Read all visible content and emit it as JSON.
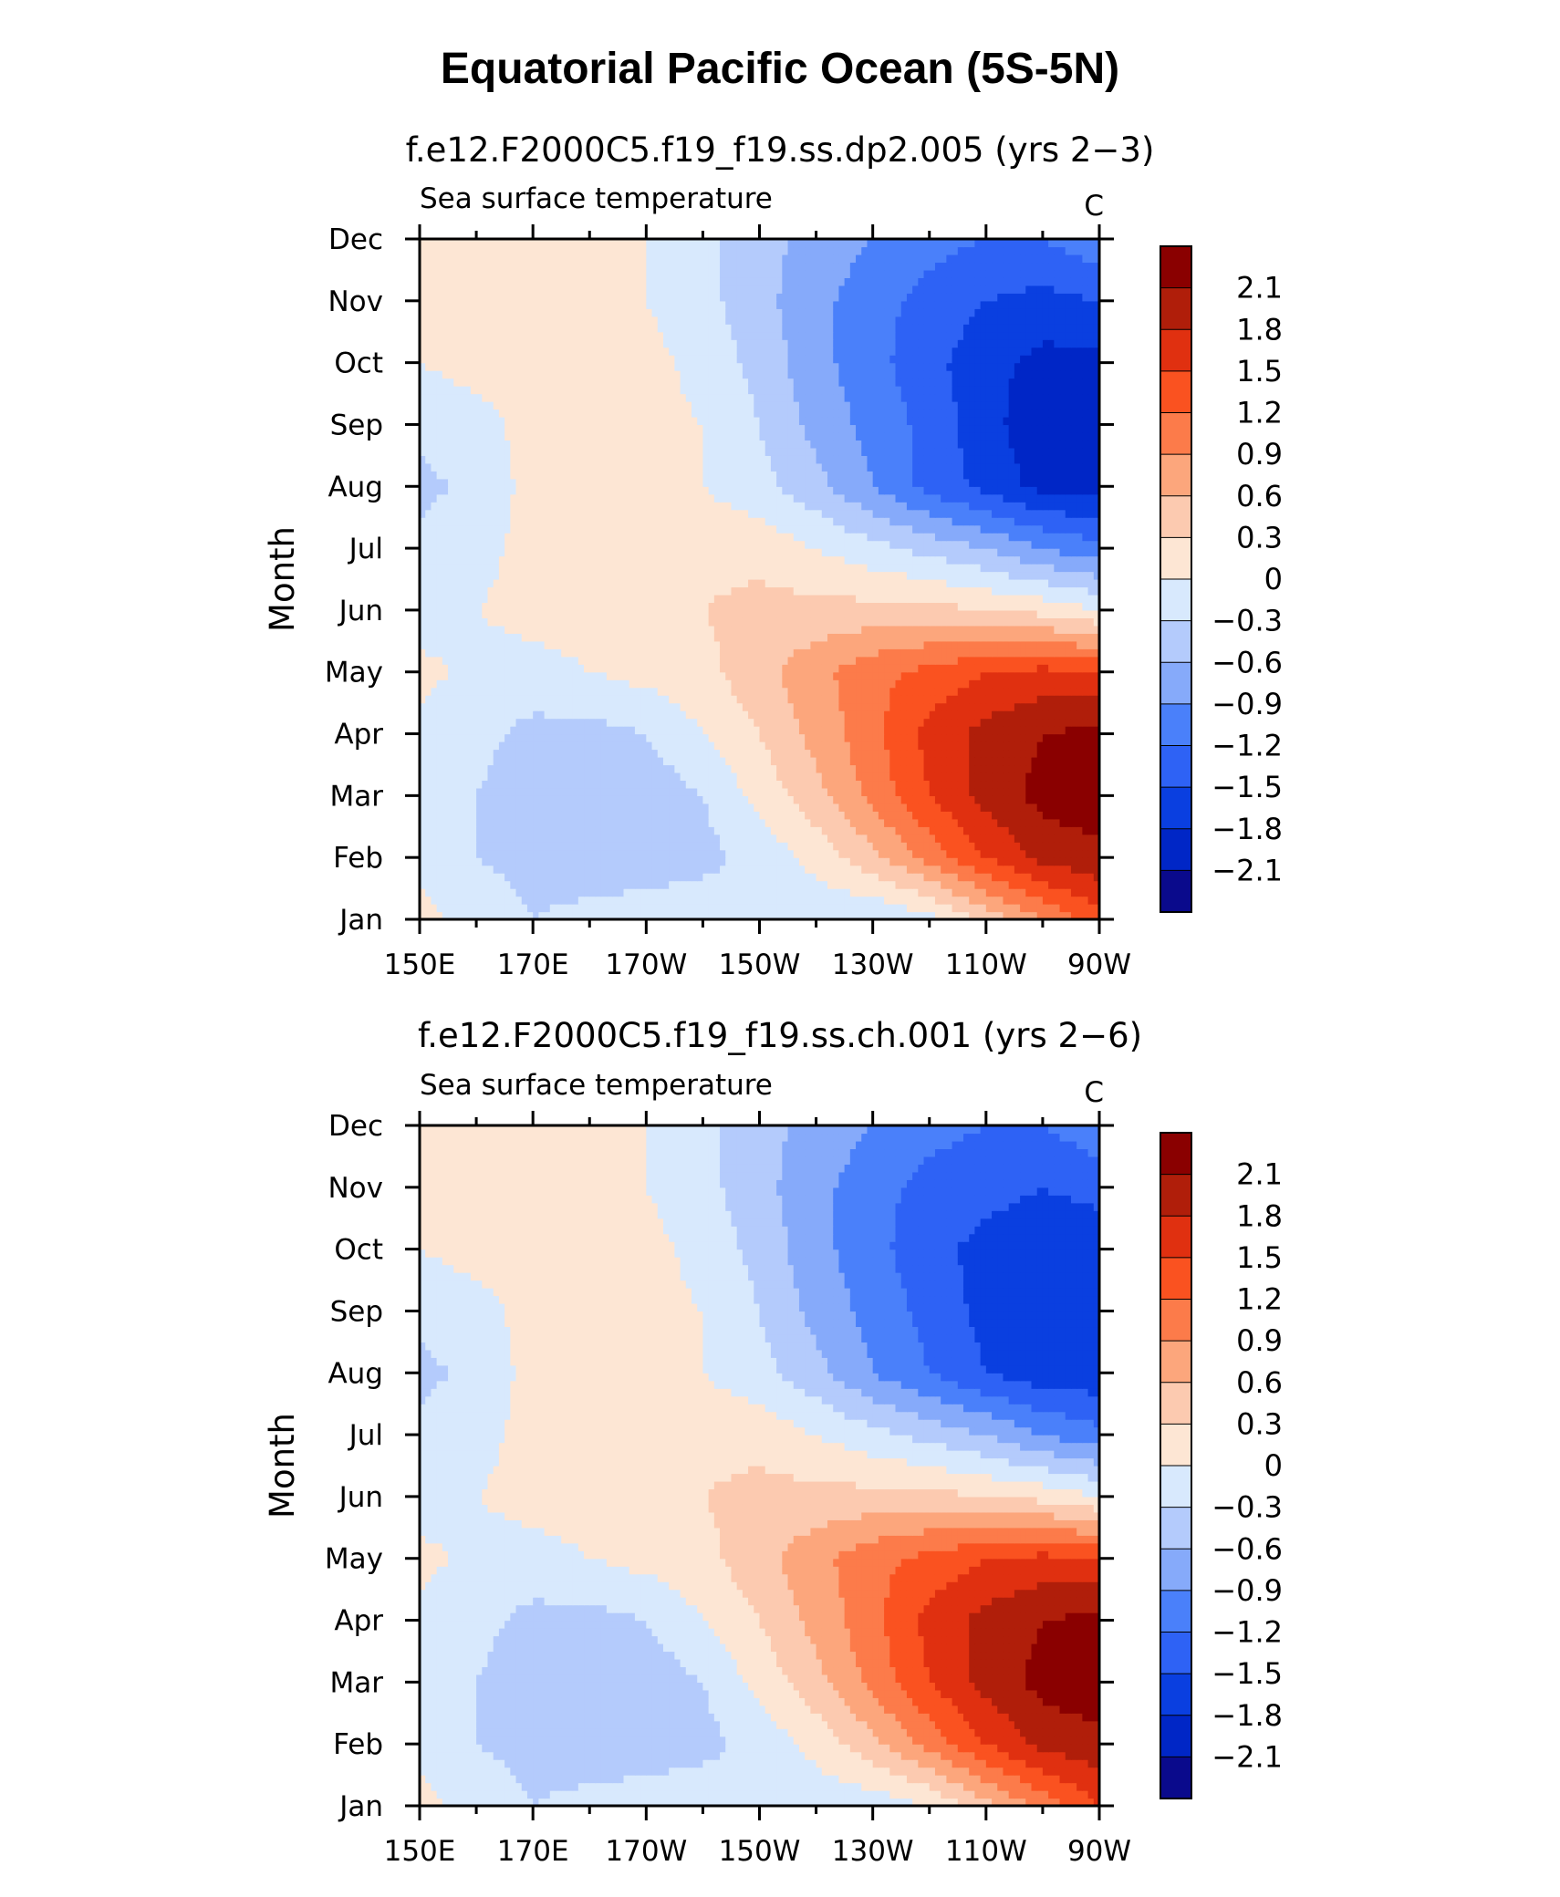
{
  "title": "Equatorial Pacific Ocean (5S-5N)",
  "colors": {
    "levels": [
      "#0a0a8c",
      "#0026c6",
      "#0a3fe0",
      "#2e62f5",
      "#4a80fa",
      "#86aafa",
      "#b4cbfc",
      "#d8e9fd",
      "#fde6d4",
      "#fccab0",
      "#fca67c",
      "#fc7b4a",
      "#fa5220",
      "#e03010",
      "#b01e0a",
      "#8a0000"
    ]
  },
  "chart_data": [
    {
      "type": "heatmap",
      "name": "f.e12.F2000C5.f19_f19.ss.dp2.005 (yrs 2−3)",
      "subtitle_left": "Sea surface temperature",
      "subtitle_right": "C",
      "ylabel": "Month",
      "x_tick_labels": [
        "150E",
        "170E",
        "170W",
        "150W",
        "130W",
        "110W",
        "90W"
      ],
      "y_tick_labels": [
        "Jan",
        "Feb",
        "Mar",
        "Apr",
        "May",
        "Jun",
        "Jul",
        "Aug",
        "Sep",
        "Oct",
        "Nov",
        "Dec"
      ],
      "x_range_deg_east": [
        150,
        270
      ],
      "colorbar_labels": [
        "2.1",
        "1.8",
        "1.5",
        "1.2",
        "0.9",
        "0.6",
        "0.3",
        "0",
        "−0.3",
        "−0.6",
        "−0.9",
        "−1.2",
        "−1.5",
        "−1.8",
        "−2.1"
      ],
      "longitudes": [
        150,
        160,
        170,
        180,
        190,
        200,
        210,
        220,
        230,
        240,
        250,
        260,
        270
      ],
      "values": [
        [
          0.1,
          -0.1,
          -0.3,
          -0.2,
          -0.1,
          -0.1,
          -0.1,
          -0.2,
          -0.3,
          -0.1,
          0.4,
          0.9,
          1.4
        ],
        [
          -0.1,
          -0.3,
          -0.4,
          -0.5,
          -0.5,
          -0.4,
          -0.2,
          0.1,
          0.5,
          1.0,
          1.5,
          1.9,
          2.0
        ],
        [
          -0.1,
          -0.3,
          -0.5,
          -0.6,
          -0.5,
          -0.3,
          0.1,
          0.5,
          1.0,
          1.5,
          1.9,
          2.2,
          2.3
        ],
        [
          -0.1,
          -0.2,
          -0.4,
          -0.4,
          -0.3,
          0.0,
          0.3,
          0.7,
          1.1,
          1.6,
          1.9,
          2.1,
          2.2
        ],
        [
          0.1,
          -0.1,
          -0.1,
          0.0,
          0.1,
          0.2,
          0.5,
          0.8,
          1.1,
          1.3,
          1.5,
          1.6,
          1.5
        ],
        [
          -0.2,
          0.0,
          0.1,
          0.1,
          0.2,
          0.3,
          0.4,
          0.4,
          0.4,
          0.4,
          0.3,
          0.2,
          0.0
        ],
        [
          -0.2,
          -0.1,
          0.1,
          0.1,
          0.1,
          0.2,
          0.2,
          0.0,
          -0.2,
          -0.4,
          -0.6,
          -0.9,
          -1.1
        ],
        [
          -0.4,
          -0.2,
          0.1,
          0.2,
          0.1,
          0.0,
          -0.2,
          -0.5,
          -0.9,
          -1.3,
          -1.6,
          -1.9,
          -1.9
        ],
        [
          -0.2,
          -0.1,
          0.1,
          0.3,
          0.1,
          0.0,
          -0.3,
          -0.7,
          -1.0,
          -1.3,
          -1.7,
          -2.0,
          -2.0
        ],
        [
          0.0,
          0.1,
          0.1,
          0.1,
          0.1,
          -0.1,
          -0.4,
          -0.8,
          -1.1,
          -1.4,
          -1.7,
          -1.9,
          -1.9
        ],
        [
          0.1,
          0.1,
          0.1,
          0.1,
          0.0,
          -0.2,
          -0.5,
          -0.8,
          -1.1,
          -1.3,
          -1.5,
          -1.6,
          -1.5
        ],
        [
          0.1,
          0.1,
          0.1,
          0.1,
          0.0,
          -0.2,
          -0.5,
          -0.7,
          -0.9,
          -1.1,
          -1.2,
          -1.2,
          -1.0
        ]
      ]
    },
    {
      "type": "heatmap",
      "name": "f.e12.F2000C5.f19_f19.ss.ch.001 (yrs 2−6)",
      "subtitle_left": "Sea surface temperature",
      "subtitle_right": "C",
      "ylabel": "Month",
      "x_tick_labels": [
        "150E",
        "170E",
        "170W",
        "150W",
        "130W",
        "110W",
        "90W"
      ],
      "y_tick_labels": [
        "Jan",
        "Feb",
        "Mar",
        "Apr",
        "May",
        "Jun",
        "Jul",
        "Aug",
        "Sep",
        "Oct",
        "Nov",
        "Dec"
      ],
      "x_range_deg_east": [
        150,
        270
      ],
      "colorbar_labels": [
        "2.1",
        "1.8",
        "1.5",
        "1.2",
        "0.9",
        "0.6",
        "0.3",
        "0",
        "−0.3",
        "−0.6",
        "−0.9",
        "−1.2",
        "−1.5",
        "−1.8",
        "−2.1"
      ],
      "longitudes": [
        150,
        160,
        170,
        180,
        190,
        200,
        210,
        220,
        230,
        240,
        250,
        260,
        270
      ],
      "values": [
        [
          0.1,
          -0.1,
          -0.3,
          -0.2,
          -0.1,
          -0.1,
          -0.1,
          -0.2,
          -0.2,
          0.0,
          0.5,
          1.0,
          1.5
        ],
        [
          -0.1,
          -0.3,
          -0.4,
          -0.5,
          -0.5,
          -0.4,
          -0.2,
          0.1,
          0.5,
          1.0,
          1.5,
          1.9,
          2.0
        ],
        [
          -0.1,
          -0.3,
          -0.5,
          -0.6,
          -0.5,
          -0.3,
          0.1,
          0.5,
          1.0,
          1.5,
          1.9,
          2.2,
          2.3
        ],
        [
          -0.1,
          -0.2,
          -0.4,
          -0.4,
          -0.3,
          0.0,
          0.3,
          0.7,
          1.1,
          1.6,
          1.9,
          2.1,
          2.2
        ],
        [
          0.1,
          -0.1,
          -0.1,
          0.0,
          0.1,
          0.2,
          0.5,
          0.8,
          1.1,
          1.3,
          1.5,
          1.6,
          1.5
        ],
        [
          -0.2,
          0.0,
          0.1,
          0.1,
          0.2,
          0.3,
          0.4,
          0.4,
          0.4,
          0.4,
          0.3,
          0.2,
          0.0
        ],
        [
          -0.2,
          -0.1,
          0.1,
          0.1,
          0.1,
          0.2,
          0.2,
          0.0,
          -0.2,
          -0.4,
          -0.6,
          -0.9,
          -1.1
        ],
        [
          -0.4,
          -0.2,
          0.1,
          0.2,
          0.1,
          0.0,
          -0.2,
          -0.5,
          -0.9,
          -1.2,
          -1.5,
          -1.7,
          -1.7
        ],
        [
          -0.2,
          -0.1,
          0.1,
          0.3,
          0.1,
          0.0,
          -0.3,
          -0.7,
          -1.0,
          -1.3,
          -1.6,
          -1.8,
          -1.8
        ],
        [
          0.0,
          0.1,
          0.1,
          0.1,
          0.1,
          -0.1,
          -0.4,
          -0.8,
          -1.1,
          -1.4,
          -1.6,
          -1.7,
          -1.7
        ],
        [
          0.1,
          0.1,
          0.1,
          0.1,
          0.0,
          -0.2,
          -0.5,
          -0.8,
          -1.1,
          -1.3,
          -1.4,
          -1.5,
          -1.4
        ],
        [
          0.1,
          0.1,
          0.1,
          0.1,
          0.0,
          -0.2,
          -0.5,
          -0.7,
          -0.9,
          -1.1,
          -1.2,
          -1.2,
          -1.0
        ]
      ]
    }
  ]
}
